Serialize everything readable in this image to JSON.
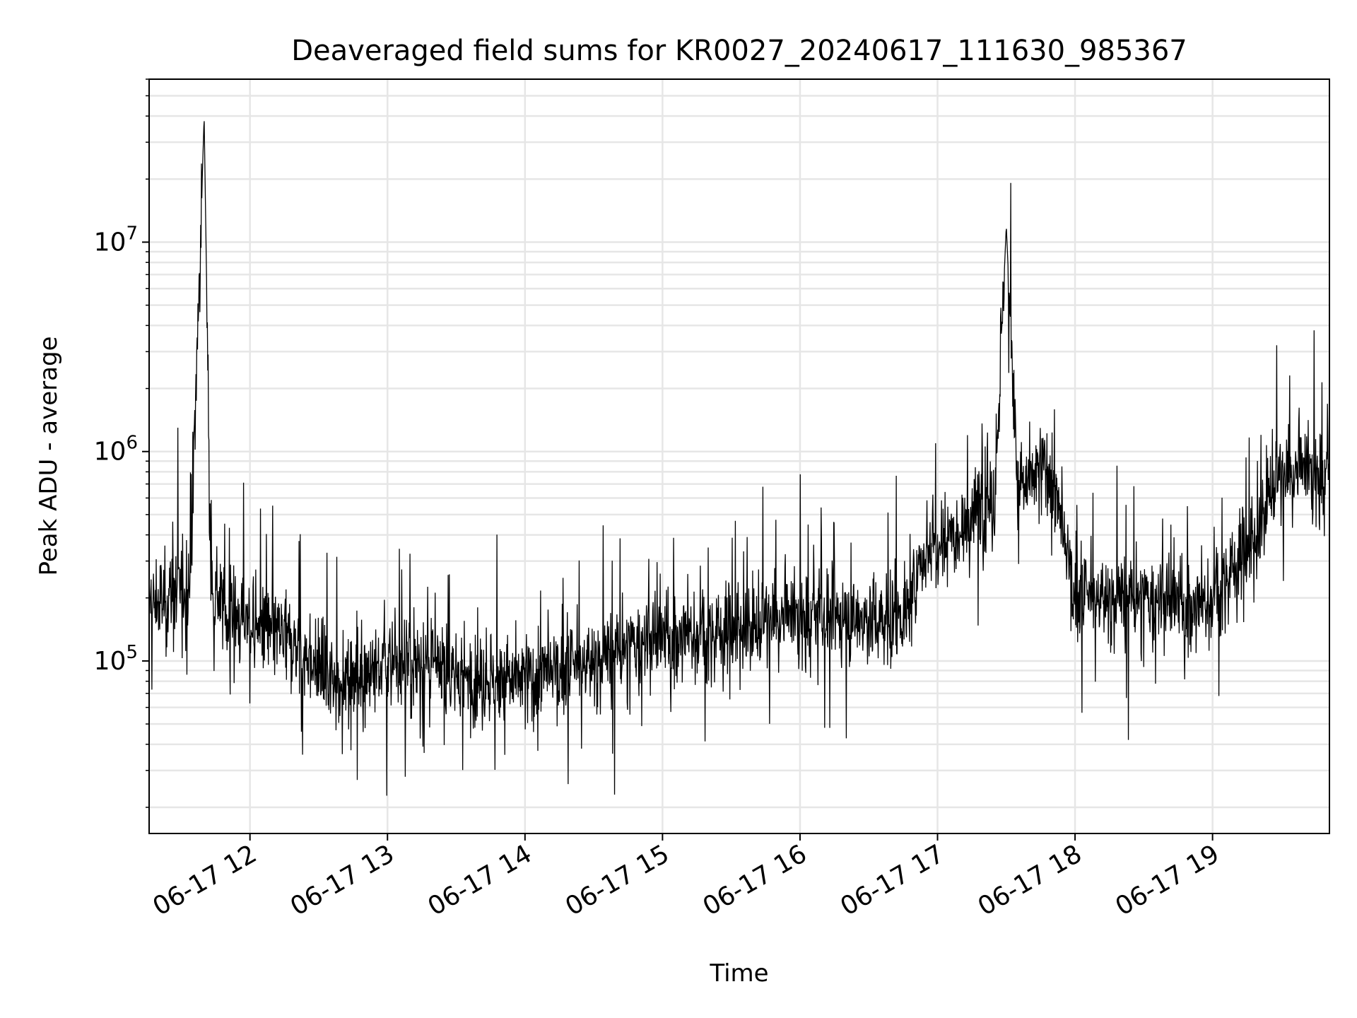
{
  "chart_data": {
    "type": "line",
    "title": "Deaveraged field sums for KR0027_20240617_111630_985367",
    "xlabel": "Time",
    "ylabel": "Peak ADU - average",
    "y_scale": "log",
    "ylim": [
      15000,
      60000000
    ],
    "xlim": [
      "06-17 11:16",
      "06-17 19:51"
    ],
    "x_ticks": [
      "06-17 12",
      "06-17 13",
      "06-17 14",
      "06-17 15",
      "06-17 16",
      "06-17 17",
      "06-17 18",
      "06-17 19"
    ],
    "y_ticks": [
      {
        "value": 100000,
        "base": "10",
        "exp": "5"
      },
      {
        "value": 1000000,
        "base": "10",
        "exp": "6"
      },
      {
        "value": 10000000,
        "base": "10",
        "exp": "7"
      }
    ],
    "grid": true,
    "line_color": "#000000",
    "series": [
      {
        "x": [
          "06-17 11:16",
          "06-17 11:25",
          "06-17 11:34",
          "06-17 11:40",
          "06-17 11:43",
          "06-17 11:50",
          "06-17 12:00",
          "06-17 12:20",
          "06-17 12:35",
          "06-17 12:50",
          "06-17 13:10",
          "06-17 13:30",
          "06-17 13:50",
          "06-17 14:10",
          "06-17 14:30",
          "06-17 14:50",
          "06-17 15:05",
          "06-17 15:20",
          "06-17 15:40",
          "06-17 16:00",
          "06-17 16:20",
          "06-17 16:40",
          "06-17 16:48",
          "06-17 16:55",
          "06-17 17:10",
          "06-17 17:25",
          "06-17 17:30",
          "06-17 17:35",
          "06-17 17:45",
          "06-17 17:48",
          "06-17 18:00",
          "06-17 18:20",
          "06-17 18:40",
          "06-17 18:55",
          "06-17 19:00",
          "06-17 19:15",
          "06-17 19:20",
          "06-17 19:25",
          "06-17 19:40",
          "06-17 19:51"
        ],
        "y": [
          180000,
          200000,
          250000,
          40000000,
          250000,
          170000,
          150000,
          120000,
          80000,
          90000,
          100000,
          85000,
          80000,
          85000,
          100000,
          120000,
          130000,
          135000,
          150000,
          160000,
          160000,
          155000,
          180000,
          350000,
          450000,
          600000,
          12000000,
          650000,
          800000,
          900000,
          200000,
          200000,
          190000,
          180000,
          200000,
          350000,
          400000,
          700000,
          800000,
          750000
        ]
      }
    ]
  }
}
